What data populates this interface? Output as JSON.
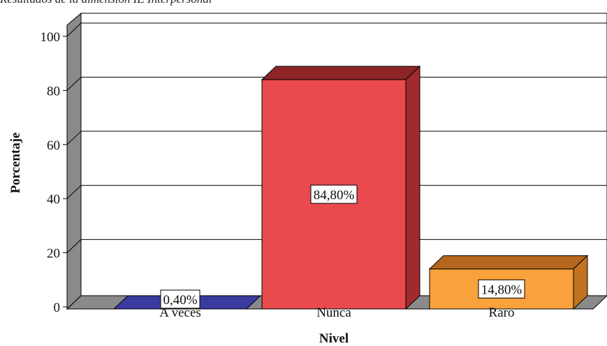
{
  "chart_data": {
    "type": "bar",
    "title": "Resultados de la dimensión IE Interpersonal",
    "xlabel": "Nivel",
    "ylabel": "Porcentaje",
    "ylim": [
      0,
      100
    ],
    "yticks": [
      0,
      20,
      40,
      60,
      80,
      100
    ],
    "grid": true,
    "categories": [
      "A veces",
      "Nunca",
      "Raro"
    ],
    "values": [
      0.4,
      84.8,
      14.8
    ],
    "data_labels": [
      "0,40%",
      "84,80%",
      "14,80%"
    ],
    "colors": {
      "A veces": {
        "front": "#3a3aa0",
        "top": "#2c2c84",
        "side": "#22226a"
      },
      "Nunca": {
        "front": "#e94a4e",
        "top": "#8c2428",
        "side": "#a02a2e"
      },
      "Raro": {
        "front": "#f9a13a",
        "top": "#b4661c",
        "side": "#c27220"
      },
      "wall_shadow": "#8a8a8a",
      "grid": "#000000"
    }
  }
}
